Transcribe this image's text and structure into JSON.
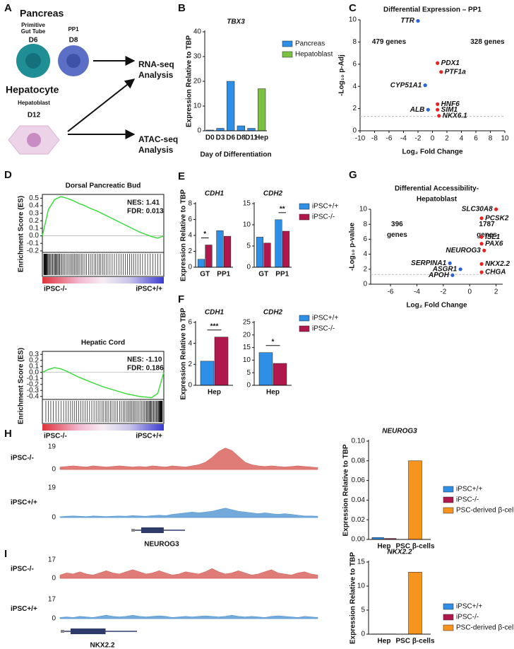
{
  "panel_labels": [
    "A",
    "B",
    "C",
    "D",
    "E",
    "F",
    "G",
    "H",
    "I"
  ],
  "schematic": {
    "pancreas": "Pancreas",
    "gut_tube": [
      "Primitive",
      "Gut Tube"
    ],
    "pp1": "PP1",
    "d6": "D6",
    "d8": "D8",
    "hepatocyte": "Hepatocyte",
    "hepatoblast": "Hepatoblast",
    "d12": "D12",
    "rna_seq": [
      "RNA-seq",
      "Analysis"
    ],
    "atac_seq": [
      "ATAC-seq",
      "Analysis"
    ]
  },
  "chart_data": [
    {
      "type": "bar",
      "title": "TBX3",
      "ylabel": "Expression Relative to TBP",
      "xlabel": "Day of Differentiation",
      "categories": [
        "D0",
        "D3",
        "D6",
        "D8",
        "D11",
        "Hep"
      ],
      "series": [
        {
          "name": "Pancreas",
          "color": "#2d8fe6",
          "values": [
            0.3,
            1,
            20,
            2,
            1,
            null
          ]
        },
        {
          "name": "Hepatoblast",
          "color": "#7cc242",
          "values": [
            null,
            null,
            null,
            null,
            null,
            17
          ]
        }
      ],
      "ylim": [
        0,
        40
      ],
      "yticks": [
        0,
        10,
        20,
        30,
        40
      ],
      "legend": "right"
    },
    {
      "type": "volcano",
      "title": "Differential Expression – PP1",
      "xlabel": "Log₂ Fold Change",
      "ylabel": "-Log₁₀ p-Adj",
      "xlim": [
        -10,
        10
      ],
      "xticks": [
        -10,
        -8,
        -6,
        -4,
        -2,
        0,
        2,
        4,
        6,
        8,
        10
      ],
      "ylim": [
        0,
        10
      ],
      "yticks": [
        0,
        2,
        4,
        6,
        8,
        10
      ],
      "threshold": 1.3,
      "annotations": [
        {
          "text": "479 genes",
          "color": "#2a63d4"
        },
        {
          "text": "328 genes",
          "color": "#e8231f"
        }
      ],
      "points": [
        {
          "label": "TTR",
          "x": -2,
          "y": 9.9,
          "color": "#2a63d4"
        },
        {
          "label": "CYP51A1",
          "x": -1,
          "y": 4.1,
          "color": "#2a63d4"
        },
        {
          "label": "ALB",
          "x": -0.6,
          "y": 1.9,
          "color": "#2a63d4"
        },
        {
          "label": "PDX1",
          "x": 0.7,
          "y": 6.1,
          "color": "#e8231f"
        },
        {
          "label": "PTF1a",
          "x": 1.2,
          "y": 5.3,
          "color": "#e8231f"
        },
        {
          "label": "HNF6",
          "x": 0.7,
          "y": 2.4,
          "color": "#e8231f"
        },
        {
          "label": "SIM1",
          "x": 0.7,
          "y": 1.9,
          "color": "#e8231f"
        },
        {
          "label": "NKX6.1",
          "x": 0.9,
          "y": 1.35,
          "color": "#e8231f"
        }
      ]
    },
    {
      "type": "gsea",
      "title": "Dorsal Pancreatic Bud",
      "stats": [
        "NES: 1.41",
        "FDR: 0.013"
      ],
      "ylabel": "Enrichment Score (ES)",
      "ylim": [
        -0.22,
        0.55
      ],
      "yticks": [
        0.5,
        0.4,
        0.3,
        0.2,
        0.1,
        {
          "value": 0,
          "label": "0.0"
        },
        -0.1,
        -0.2
      ],
      "color": "#3fdc3f",
      "values": [
        0,
        0.35,
        0.48,
        0.52,
        0.5,
        0.47,
        0.43,
        0.4,
        0.36,
        0.33,
        0.29,
        0.25,
        0.21,
        0.17,
        0.13,
        0.09,
        0.05,
        0.02,
        -0.01,
        -0.03,
        0
      ],
      "group_labels": [
        "iPSC-/-",
        "iPSC+/+"
      ]
    },
    {
      "type": "gsea",
      "title": "Hepatic Cord",
      "stats": [
        "NES: -1.10",
        "FDR: 0.186"
      ],
      "ylabel": "Enrichment Score (ES)",
      "ylim": [
        -0.45,
        0.35
      ],
      "yticks": [
        0.3,
        0.2,
        0.1,
        {
          "value": 0,
          "label": "0.0"
        },
        -0.1,
        -0.2,
        -0.3,
        -0.4
      ],
      "color": "#3fdc3f",
      "values": [
        0,
        0.05,
        0.08,
        0.06,
        0.02,
        -0.03,
        -0.08,
        -0.12,
        -0.16,
        -0.2,
        -0.24,
        -0.27,
        -0.3,
        -0.33,
        -0.36,
        -0.38,
        -0.4,
        -0.41,
        -0.42,
        -0.35,
        0
      ],
      "group_labels": [
        "iPSC-/-",
        "iPSC+/+"
      ]
    },
    {
      "type": "bar",
      "title": "CDH1",
      "ylabel": "Expression Relative to TBP",
      "categories": [
        "GT",
        "PP1"
      ],
      "series": [
        {
          "name": "iPSC+/+",
          "color": "#2d8fe6",
          "values": [
            1,
            4.6
          ]
        },
        {
          "name": "iPSC-/-",
          "color": "#b0174c",
          "values": [
            2.8,
            3.9
          ]
        }
      ],
      "ylim": [
        0,
        8
      ],
      "yticks": [
        0,
        2,
        4,
        6,
        8
      ],
      "significance": [
        "*",
        null
      ]
    },
    {
      "type": "bar",
      "title": "CDH2",
      "categories": [
        "GT",
        "PP1"
      ],
      "series": [
        {
          "name": "iPSC+/+",
          "color": "#2d8fe6",
          "values": [
            7.1,
            11.2
          ]
        },
        {
          "name": "iPSC-/-",
          "color": "#b0174c",
          "values": [
            5.7,
            8.5
          ]
        }
      ],
      "ylim": [
        0,
        15
      ],
      "yticks": [
        0,
        5,
        10,
        15
      ],
      "significance": [
        null,
        "**"
      ],
      "legend": "right"
    },
    {
      "type": "bar",
      "title": "CDH1",
      "ylabel": "Expression Relative to TBP",
      "categories": [
        "Hep"
      ],
      "series": [
        {
          "name": "iPSC+/+",
          "color": "#2d8fe6",
          "values": [
            2.3
          ]
        },
        {
          "name": "iPSC-/-",
          "color": "#b0174c",
          "values": [
            4.6
          ]
        }
      ],
      "ylim": [
        0,
        6
      ],
      "yticks": [
        0,
        2,
        4,
        6
      ],
      "significance": [
        "***"
      ]
    },
    {
      "type": "bar",
      "title": "CDH2",
      "categories": [
        "Hep"
      ],
      "series": [
        {
          "name": "iPSC+/+",
          "color": "#2d8fe6",
          "values": [
            13
          ]
        },
        {
          "name": "iPSC-/-",
          "color": "#b0174c",
          "values": [
            8.7
          ]
        }
      ],
      "ylim": [
        0,
        25
      ],
      "yticks": [
        0,
        5,
        10,
        15,
        20,
        25
      ],
      "significance": [
        "*"
      ],
      "legend": "right"
    },
    {
      "type": "volcano",
      "title": [
        "Differential Accessibility-",
        "Hepatoblast"
      ],
      "xlabel": "Log₂ Fold Change",
      "ylabel": "-Log₁₀ p-value",
      "xlim": [
        -7.5,
        2.5
      ],
      "xticks": [
        -6,
        -4,
        -2,
        0,
        2
      ],
      "ylim": [
        0,
        10
      ],
      "yticks": [
        0,
        2,
        4,
        6,
        8,
        10
      ],
      "threshold": 1.3,
      "annotations": [
        {
          "text": [
            "396",
            "genes"
          ],
          "color": "#2a63d4"
        },
        {
          "text": [
            "1787",
            "genes"
          ],
          "color": "#e8231f"
        }
      ],
      "points": [
        {
          "label": "PCSK2",
          "x": 0.9,
          "y": 8.8,
          "color": "#e8231f"
        },
        {
          "label": "SLC30A8",
          "x": 2,
          "y": 10,
          "color": "#e8231f"
        },
        {
          "label": "ISL1",
          "x": 0.9,
          "y": 6.3,
          "color": "#e8231f"
        },
        {
          "label": "PAX6",
          "x": 0.9,
          "y": 5.4,
          "color": "#e8231f"
        },
        {
          "label": "NEUROG3",
          "x": 1.1,
          "y": 4.5,
          "color": "#e8231f"
        },
        {
          "label": "NKX2.2",
          "x": 0.9,
          "y": 2.7,
          "color": "#e8231f"
        },
        {
          "label": "CHGA",
          "x": 0.9,
          "y": 1.6,
          "color": "#e8231f"
        },
        {
          "label": "SERPINA1",
          "x": -1.5,
          "y": 2.8,
          "color": "#2a63d4"
        },
        {
          "label": "ASGR1",
          "x": -0.7,
          "y": 2,
          "color": "#2a63d4"
        },
        {
          "label": "APOH",
          "x": -1.3,
          "y": 1.2,
          "color": "#2a63d4"
        }
      ]
    },
    {
      "type": "track",
      "gene": "NEUROG3",
      "rows": [
        {
          "label": "iPSC-/-",
          "color": "#d9655f",
          "ylim": [
            0,
            19
          ],
          "yticks": [
            0,
            19
          ],
          "values": [
            2,
            2.5,
            3,
            2.5,
            2,
            3,
            2.5,
            2,
            2.5,
            3,
            2.5,
            2,
            2.5,
            2,
            3,
            2.5,
            2,
            3,
            2.5,
            2,
            3,
            4,
            6,
            10,
            15,
            18,
            16,
            11,
            6,
            4,
            3,
            2.5,
            3,
            2.5,
            2,
            2.5,
            3,
            2.5,
            2,
            1.5
          ]
        },
        {
          "label": "iPSC+/+",
          "color": "#5b9bd5",
          "ylim": [
            0,
            19
          ],
          "yticks": [
            0,
            19
          ],
          "values": [
            0.5,
            0.8,
            1,
            0.8,
            0.6,
            1,
            0.8,
            0.6,
            0.8,
            1,
            0.8,
            1.2,
            1,
            0.8,
            1.2,
            1.5,
            1.2,
            2,
            2.5,
            3,
            3.5,
            3,
            3.5,
            4,
            5,
            6,
            5,
            4,
            3.5,
            3,
            2.5,
            3,
            2.5,
            2,
            2.5,
            2,
            1.5,
            1,
            1,
            0.8
          ]
        }
      ]
    },
    {
      "type": "bar",
      "title": "NEUROG3",
      "ylabel": "Expression Relative to TBP",
      "categories": [
        "Hep",
        "PSC β-cells"
      ],
      "series": [
        {
          "name": "iPSC+/+",
          "color": "#2d8fe6",
          "values": [
            0.002,
            null
          ]
        },
        {
          "name": "iPSC-/-",
          "color": "#b0174c",
          "values": [
            0.001,
            null
          ]
        },
        {
          "name": "PSC-derived β-cells",
          "color": "#f7941d",
          "values": [
            null,
            0.08
          ]
        }
      ],
      "ylim": [
        0,
        0.1
      ],
      "yticks": [
        {
          "value": 0,
          "label": "0.00"
        },
        {
          "value": 0.02,
          "label": "0.02"
        },
        {
          "value": 0.04,
          "label": "0.04"
        },
        {
          "value": 0.06,
          "label": "0.06"
        },
        {
          "value": 0.08,
          "label": "0.08"
        },
        {
          "value": 0.1,
          "label": "0.10"
        }
      ],
      "legend": "right"
    },
    {
      "type": "track",
      "gene": "NKX2.2",
      "rows": [
        {
          "label": "iPSC-/-",
          "color": "#d9655f",
          "ylim": [
            0,
            17
          ],
          "yticks": [
            0,
            17
          ],
          "values": [
            3,
            5,
            4,
            6,
            4,
            3,
            5,
            7,
            5,
            4,
            6,
            8,
            6,
            4,
            5,
            7,
            5,
            3,
            4,
            6,
            5,
            4,
            6,
            9,
            6,
            4,
            5,
            7,
            5,
            3,
            4,
            6,
            8,
            5,
            4,
            3,
            5,
            6,
            4,
            3
          ]
        },
        {
          "label": "iPSC+/+",
          "color": "#5b9bd5",
          "ylim": [
            0,
            17
          ],
          "yticks": [
            0,
            17
          ],
          "values": [
            1,
            1.5,
            1,
            2,
            1.5,
            1,
            2,
            3,
            2,
            1.5,
            2,
            3,
            2,
            1.5,
            2,
            2.5,
            2,
            1,
            1.5,
            2,
            1.5,
            2,
            2.5,
            2,
            1.5,
            2,
            3,
            2,
            1.5,
            2,
            1.5,
            1,
            2,
            2.5,
            2,
            1.5,
            1,
            2,
            1.5,
            1
          ]
        }
      ]
    },
    {
      "type": "bar",
      "title": "NKX2.2",
      "ylabel": "Expression Relative to TBP",
      "categories": [
        "Hep",
        "PSC β-cells"
      ],
      "series": [
        {
          "name": "iPSC+/+",
          "color": "#2d8fe6",
          "values": [
            0.05,
            null
          ]
        },
        {
          "name": "iPSC-/-",
          "color": "#b0174c",
          "values": [
            0.05,
            null
          ]
        },
        {
          "name": "PSC-derived β-cells",
          "color": "#f7941d",
          "values": [
            null,
            12.9
          ]
        }
      ],
      "ylim": [
        0,
        15
      ],
      "yticks": [
        0,
        5,
        10,
        15
      ],
      "legend": "right"
    }
  ]
}
